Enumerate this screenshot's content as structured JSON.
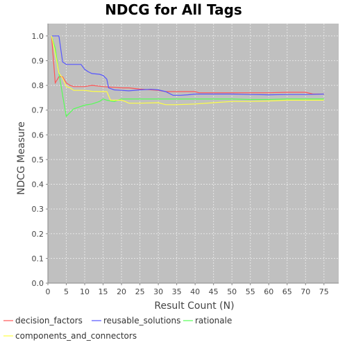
{
  "chart_data": {
    "type": "line",
    "title": "NDCG for All Tags",
    "xlabel": "Result Count (N)",
    "ylabel": "NDCG Measure",
    "xlim": [
      0,
      79
    ],
    "ylim": [
      0,
      1.05
    ],
    "xticks": [
      0,
      5,
      10,
      15,
      20,
      25,
      30,
      35,
      40,
      45,
      50,
      55,
      60,
      65,
      70,
      75
    ],
    "yticks": [
      0.0,
      0.1,
      0.2,
      0.3,
      0.4,
      0.5,
      0.6,
      0.7,
      0.8,
      0.9,
      1.0
    ],
    "grid": true,
    "legend_position": "bottom",
    "series": [
      {
        "name": "decision_factors",
        "color": "#ff5555",
        "points": [
          [
            1,
            1.0
          ],
          [
            2,
            0.81
          ],
          [
            3,
            0.835
          ],
          [
            4,
            0.835
          ],
          [
            5,
            0.81
          ],
          [
            6,
            0.8
          ],
          [
            7,
            0.795
          ],
          [
            10,
            0.795
          ],
          [
            12,
            0.8
          ],
          [
            15,
            0.795
          ],
          [
            20,
            0.79
          ],
          [
            22,
            0.79
          ],
          [
            25,
            0.785
          ],
          [
            30,
            0.78
          ],
          [
            32,
            0.775
          ],
          [
            35,
            0.775
          ],
          [
            40,
            0.775
          ],
          [
            41,
            0.77
          ],
          [
            45,
            0.77
          ],
          [
            50,
            0.77
          ],
          [
            55,
            0.77
          ],
          [
            60,
            0.77
          ],
          [
            65,
            0.772
          ],
          [
            70,
            0.772
          ],
          [
            72,
            0.765
          ],
          [
            75,
            0.765
          ]
        ]
      },
      {
        "name": "reusable_solutions",
        "color": "#5555ff",
        "points": [
          [
            1,
            1.0
          ],
          [
            2,
            1.0
          ],
          [
            3,
            1.0
          ],
          [
            4,
            0.895
          ],
          [
            5,
            0.885
          ],
          [
            7,
            0.885
          ],
          [
            9,
            0.885
          ],
          [
            10,
            0.865
          ],
          [
            11,
            0.855
          ],
          [
            12,
            0.848
          ],
          [
            14,
            0.845
          ],
          [
            15,
            0.84
          ],
          [
            16,
            0.825
          ],
          [
            16.5,
            0.79
          ],
          [
            18,
            0.782
          ],
          [
            20,
            0.78
          ],
          [
            22,
            0.778
          ],
          [
            25,
            0.782
          ],
          [
            28,
            0.784
          ],
          [
            30,
            0.782
          ],
          [
            32,
            0.775
          ],
          [
            34,
            0.76
          ],
          [
            36,
            0.76
          ],
          [
            38,
            0.762
          ],
          [
            40,
            0.765
          ],
          [
            45,
            0.765
          ],
          [
            50,
            0.765
          ],
          [
            55,
            0.763
          ],
          [
            60,
            0.762
          ],
          [
            65,
            0.763
          ],
          [
            70,
            0.763
          ],
          [
            75,
            0.765
          ]
        ]
      },
      {
        "name": "rationale",
        "color": "#55ff55",
        "points": [
          [
            1,
            1.0
          ],
          [
            2,
            0.95
          ],
          [
            3,
            0.85
          ],
          [
            4,
            0.76
          ],
          [
            5,
            0.675
          ],
          [
            6,
            0.69
          ],
          [
            7,
            0.705
          ],
          [
            8,
            0.71
          ],
          [
            10,
            0.72
          ],
          [
            12,
            0.725
          ],
          [
            14,
            0.735
          ],
          [
            15,
            0.745
          ],
          [
            16,
            0.74
          ],
          [
            18,
            0.735
          ],
          [
            20,
            0.745
          ],
          [
            22,
            0.745
          ],
          [
            25,
            0.745
          ],
          [
            30,
            0.745
          ],
          [
            35,
            0.745
          ],
          [
            40,
            0.745
          ],
          [
            45,
            0.745
          ],
          [
            50,
            0.745
          ],
          [
            55,
            0.743
          ],
          [
            60,
            0.743
          ],
          [
            65,
            0.745
          ],
          [
            70,
            0.745
          ],
          [
            75,
            0.745
          ]
        ]
      },
      {
        "name": "components_and_connectors",
        "color": "#ffff44",
        "points": [
          [
            1,
            1.0
          ],
          [
            2,
            0.93
          ],
          [
            3,
            0.85
          ],
          [
            4,
            0.83
          ],
          [
            5,
            0.795
          ],
          [
            6,
            0.79
          ],
          [
            7,
            0.78
          ],
          [
            10,
            0.78
          ],
          [
            12,
            0.776
          ],
          [
            15,
            0.775
          ],
          [
            16,
            0.775
          ],
          [
            17,
            0.74
          ],
          [
            20,
            0.74
          ],
          [
            21,
            0.735
          ],
          [
            22,
            0.728
          ],
          [
            25,
            0.728
          ],
          [
            30,
            0.73
          ],
          [
            32,
            0.722
          ],
          [
            35,
            0.722
          ],
          [
            40,
            0.725
          ],
          [
            45,
            0.73
          ],
          [
            50,
            0.735
          ],
          [
            55,
            0.735
          ],
          [
            60,
            0.737
          ],
          [
            65,
            0.74
          ],
          [
            70,
            0.74
          ],
          [
            75,
            0.74
          ]
        ]
      }
    ]
  }
}
